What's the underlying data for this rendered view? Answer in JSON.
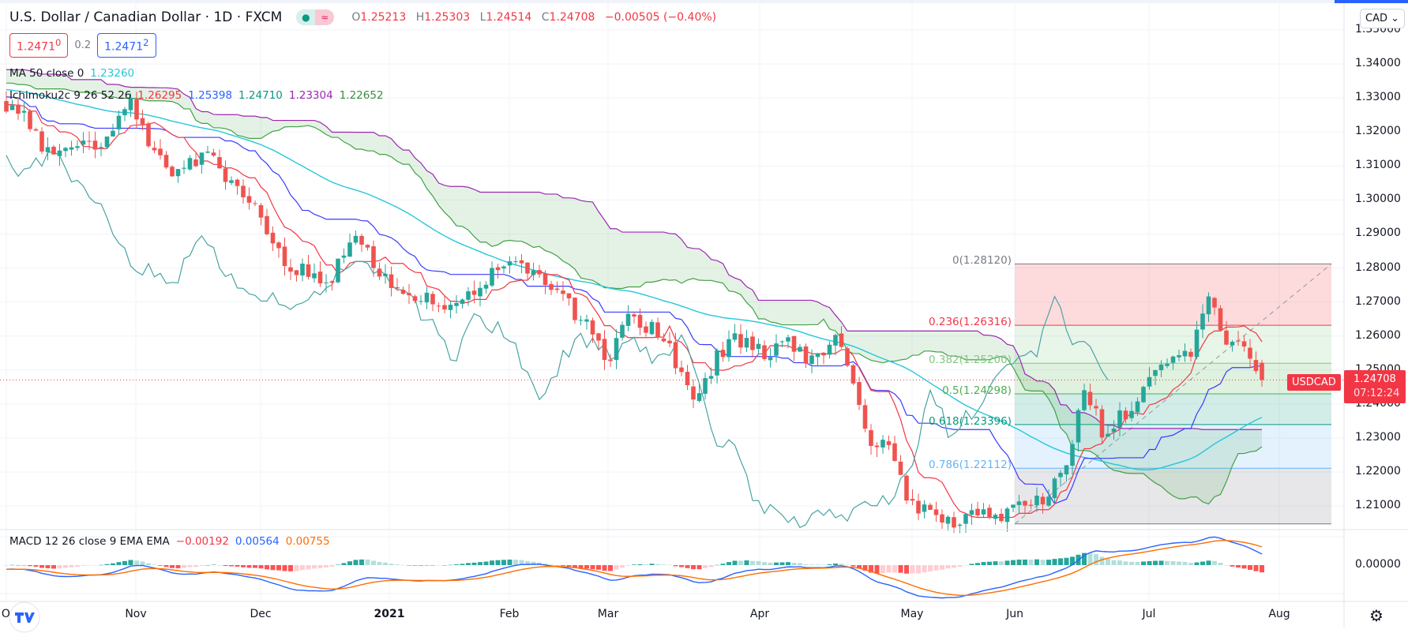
{
  "header": {
    "title": "U.S. Dollar / Canadian Dollar · 1D · FXCM",
    "market_status_icon": "dot-icon",
    "data_status_icon": "approx-icon",
    "ohlc": {
      "o_label": "O",
      "o": "1.25213",
      "h_label": "H",
      "h": "1.25303",
      "l_label": "L",
      "l": "1.24514",
      "c_label": "C",
      "c": "1.24708",
      "change": "−0.00505 (−0.40%)"
    },
    "sell_price": "1.2471",
    "sell_price_sup": "0",
    "spread": "0.2",
    "buy_price": "1.2471",
    "buy_price_sup": "2"
  },
  "indicators": {
    "ma": {
      "label": "MA 50 close 0",
      "value": "1.23260",
      "color": "#26c6da"
    },
    "ichimoku": {
      "label": "Ichimoku2c 9 26 52 26",
      "values": [
        "1.26295",
        "1.25398",
        "1.24710",
        "1.23304",
        "1.22652"
      ],
      "colors": [
        "#f23645",
        "#2962ff",
        "#089981",
        "#9c27b0",
        "#388e3c"
      ]
    },
    "macd": {
      "label": "MACD 12 26 close 9 EMA EMA",
      "values": [
        "−0.00192",
        "0.00564",
        "0.00755"
      ],
      "colors": [
        "#f23645",
        "#2962ff",
        "#ff6d00"
      ]
    }
  },
  "price_axis": {
    "currency_button": "CAD",
    "ticks": [
      "1.35000",
      "1.34000",
      "1.33000",
      "1.32000",
      "1.31000",
      "1.30000",
      "1.29000",
      "1.28000",
      "1.27000",
      "1.26000",
      "1.25000",
      "1.24000",
      "1.23000",
      "1.22000",
      "1.21000"
    ],
    "macd_ticks": [
      "0.00000"
    ],
    "current_price": "1.24708",
    "countdown": "07:12:24",
    "symbol_tag": "USDCAD"
  },
  "time_axis": {
    "labels": [
      "Oct",
      "Nov",
      "Dec",
      "2021",
      "Feb",
      "Mar",
      "Apr",
      "May",
      "Jun",
      "Jul",
      "Aug"
    ]
  },
  "fibonacci": {
    "levels": [
      {
        "label": "0(1.28120)",
        "ratio": 0,
        "price": 1.2812,
        "color": "#787b86"
      },
      {
        "label": "0.236(1.26316)",
        "ratio": 0.236,
        "price": 1.26316,
        "color": "#f23645"
      },
      {
        "label": "0.382(1.25200)",
        "ratio": 0.382,
        "price": 1.252,
        "color": "#81c784"
      },
      {
        "label": "0.5(1.24298)",
        "ratio": 0.5,
        "price": 1.24298,
        "color": "#4caf50"
      },
      {
        "label": "0.618(1.23396)",
        "ratio": 0.618,
        "price": 1.23396,
        "color": "#089981"
      },
      {
        "label": "0.786(1.22112)",
        "ratio": 0.786,
        "price": 1.22112,
        "color": "#64b5f6"
      }
    ],
    "bottom_price": 1.20476
  },
  "colors": {
    "up": "#26a69a",
    "down": "#ef5350",
    "tenkan": "#f23645",
    "kijun": "#3a3aff",
    "chikou": "#4aa3a3",
    "senkou_a": "#43a047",
    "senkou_b": "#9c27b0",
    "ma": "#26c6da",
    "macd": "#2962ff",
    "signal": "#ff6d00"
  },
  "chart_data": {
    "type": "candlestick",
    "symbol": "USDCAD",
    "interval": "1D",
    "approx_close_path": [
      1.327,
      1.324,
      1.315,
      1.312,
      1.318,
      1.315,
      1.322,
      1.328,
      1.318,
      1.308,
      1.31,
      1.313,
      1.31,
      1.303,
      1.298,
      1.29,
      1.28,
      1.279,
      1.275,
      1.282,
      1.29,
      1.28,
      1.272,
      1.27,
      1.272,
      1.268,
      1.272,
      1.275,
      1.283,
      1.282,
      1.277,
      1.272,
      1.268,
      1.262,
      1.252,
      1.266,
      1.262,
      1.262,
      1.25,
      1.241,
      1.252,
      1.26,
      1.258,
      1.255,
      1.259,
      1.255,
      1.252,
      1.26,
      1.242,
      1.228,
      1.227,
      1.21,
      1.21,
      1.205,
      1.207,
      1.208,
      1.205,
      1.21,
      1.21,
      1.214,
      1.222,
      1.246,
      1.232,
      1.236,
      1.242,
      1.248,
      1.252,
      1.256,
      1.272,
      1.258,
      1.256,
      1.24708
    ],
    "last_bar": {
      "open": 1.25213,
      "high": 1.25303,
      "low": 1.24514,
      "close": 1.24708
    },
    "ylim": [
      1.2,
      1.355
    ]
  }
}
